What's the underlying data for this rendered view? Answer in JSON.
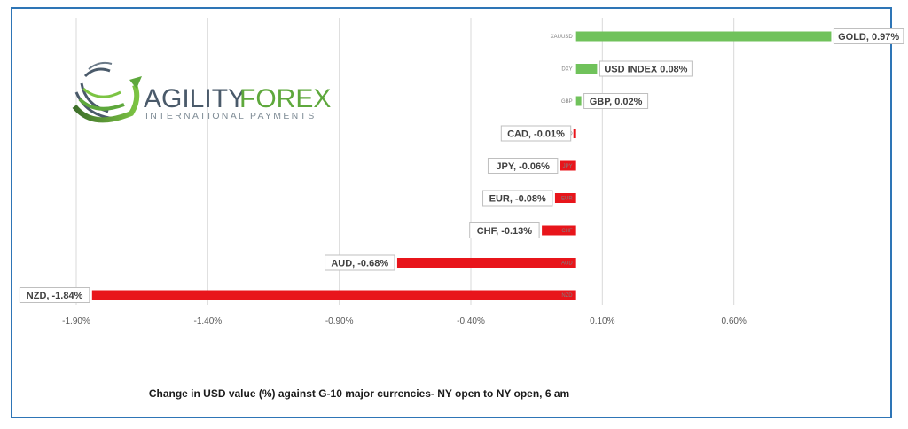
{
  "chart_data": {
    "type": "bar",
    "orientation": "horizontal",
    "categories": [
      "XAUUSD",
      "DXY",
      "GBP",
      "CAD",
      "JPY",
      "EUR",
      "CHF",
      "AUD",
      "NZD"
    ],
    "values": [
      0.97,
      0.08,
      0.02,
      -0.01,
      -0.06,
      -0.08,
      -0.13,
      -0.68,
      -1.84
    ],
    "data_labels": [
      "GOLD, 0.97%",
      "USD INDEX 0.08%",
      "GBP, 0.02%",
      "CAD, -0.01%",
      "JPY, -0.06%",
      "EUR, -0.08%",
      "CHF, -0.13%",
      "AUD, -0.68%",
      "NZD, -1.84%"
    ],
    "x_ticks": [
      -1.9,
      -1.4,
      -0.9,
      -0.4,
      0.1,
      0.6
    ],
    "x_tick_labels": [
      "-1.90%",
      "-1.40%",
      "-0.90%",
      "-0.40%",
      "0.10%",
      "0.60%"
    ],
    "xlim": [
      -1.9,
      1.1
    ],
    "grid": true,
    "positive_color": "#70c25b",
    "negative_color": "#e8151b",
    "caption": "Change in  USD value (%)  against  G-10 major currencies- NY open to NY open, 6 am"
  },
  "brand": {
    "name_part1": "AGILITY",
    "name_part2": "FOREX",
    "tagline": "INTERNATIONAL PAYMENTS",
    "primary_color": "#5ea83c",
    "secondary_color": "#4a5a6a"
  }
}
